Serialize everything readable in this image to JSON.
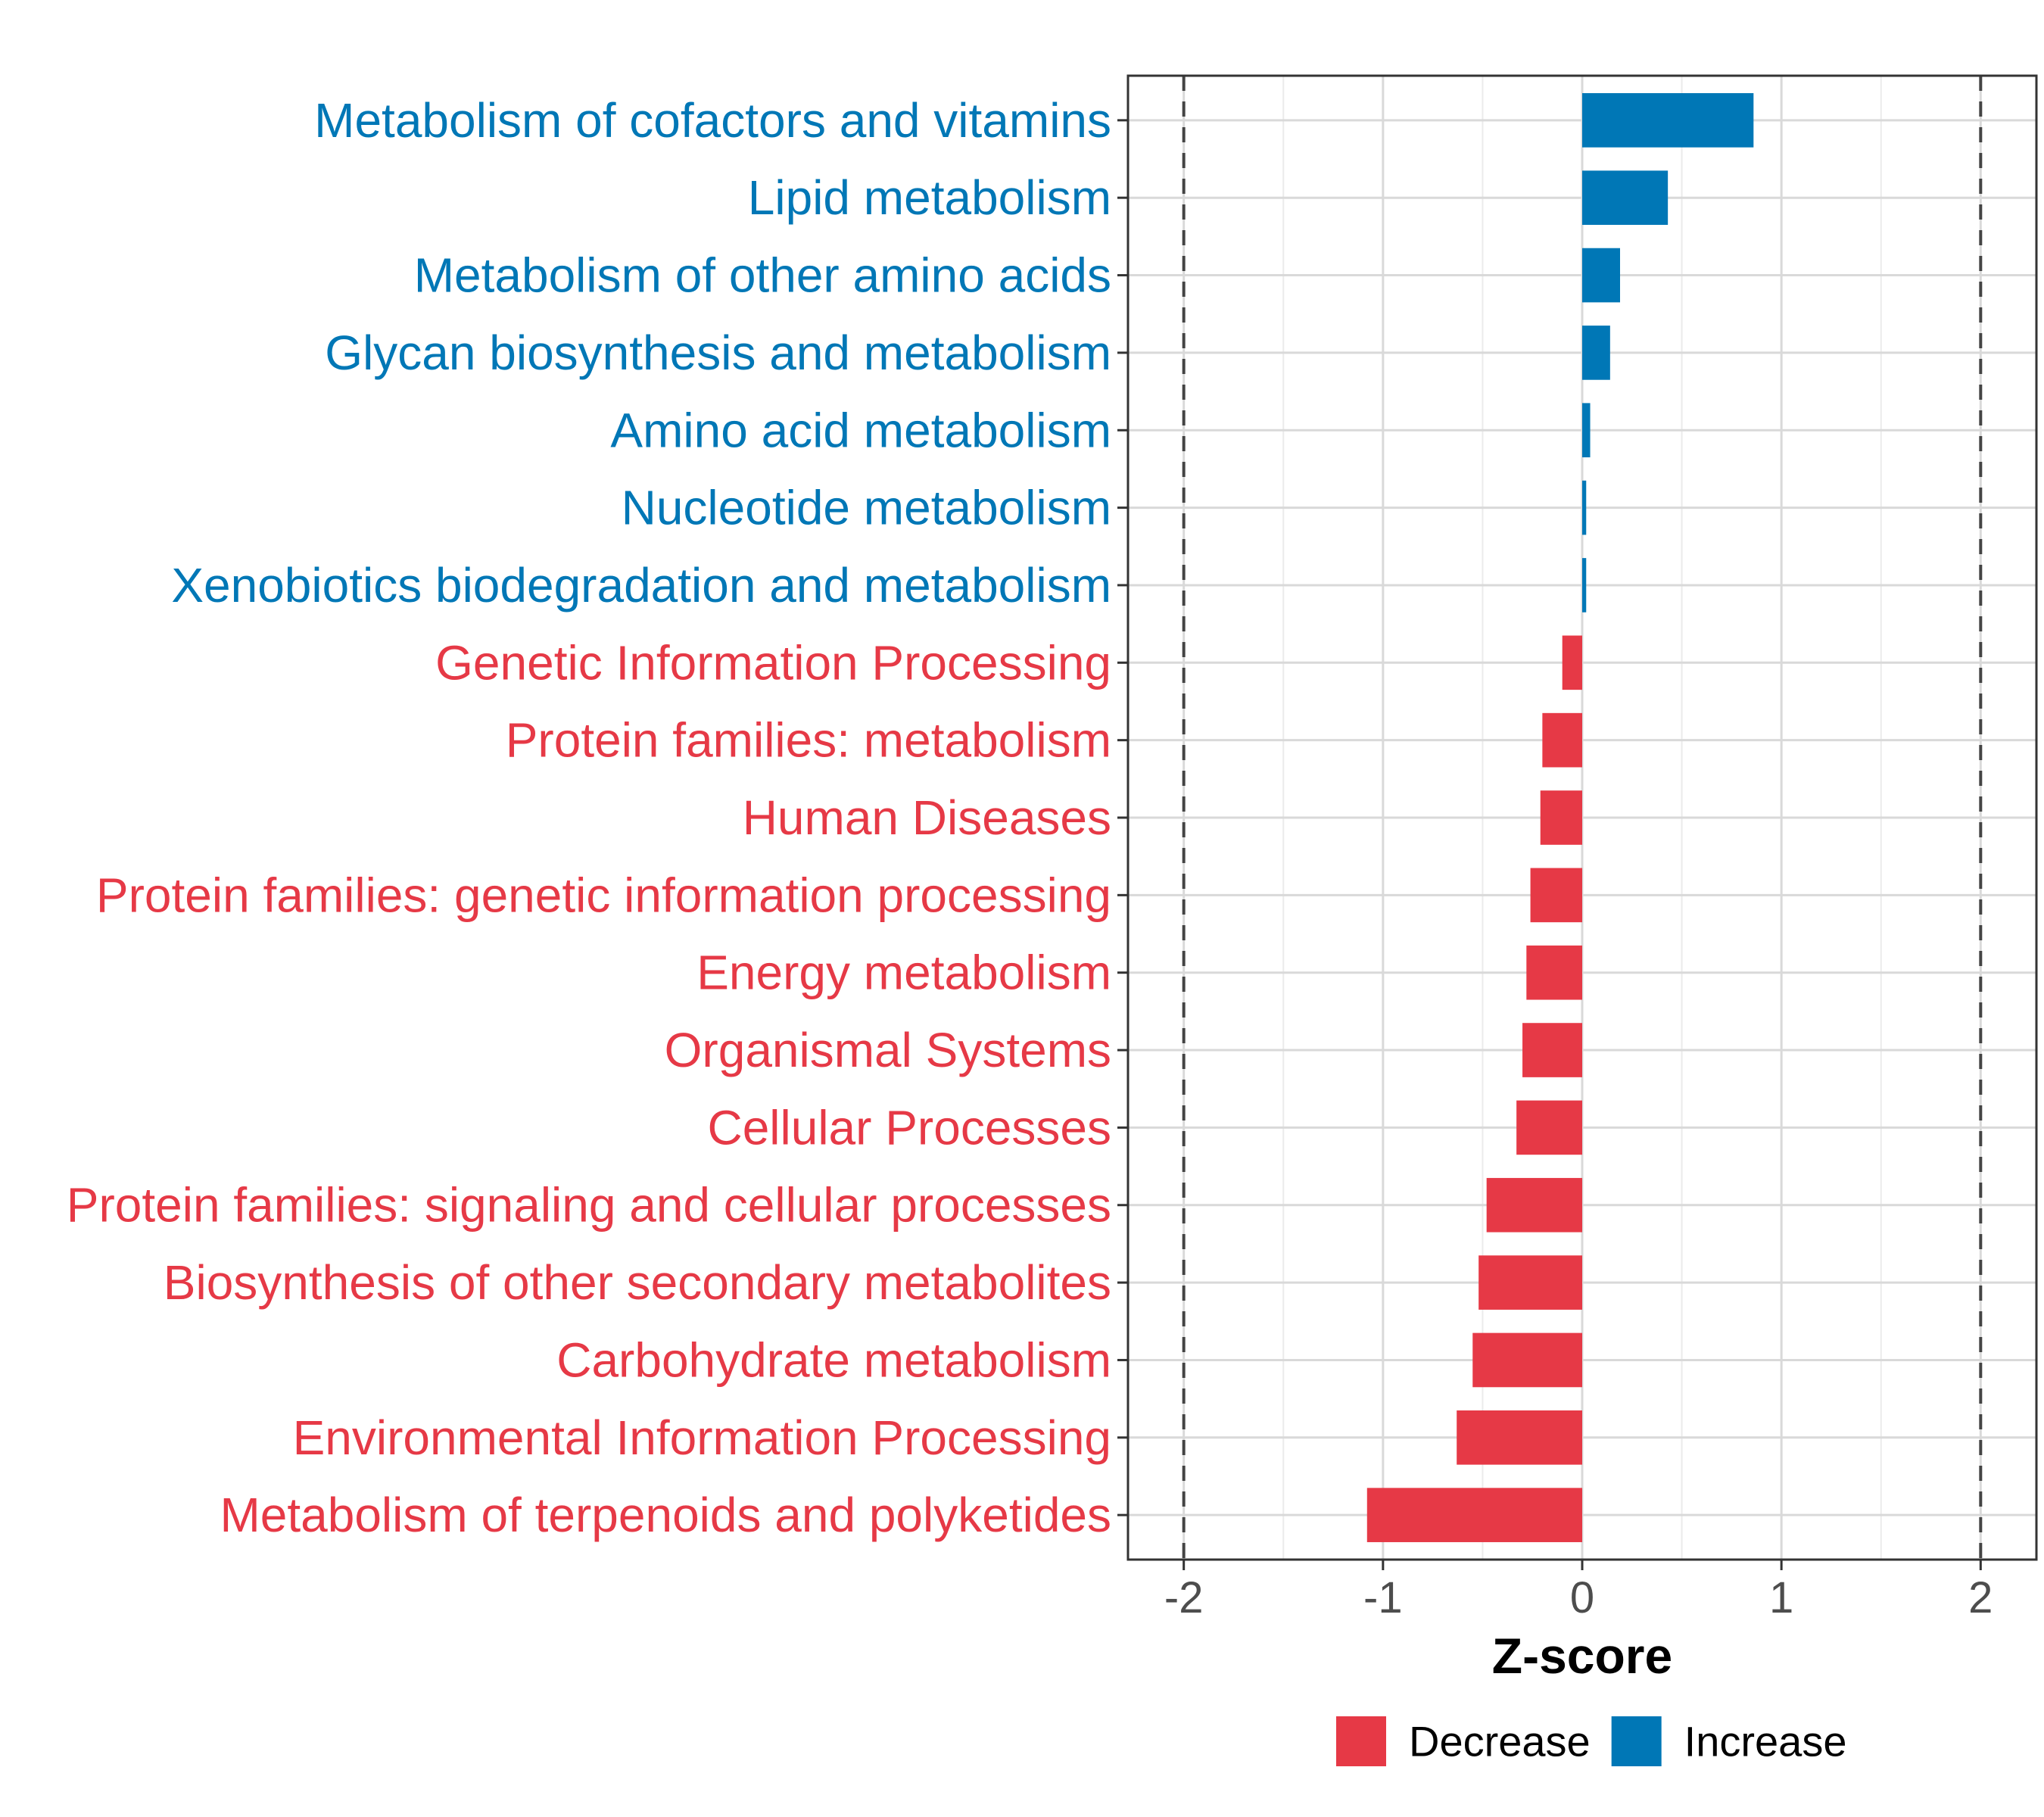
{
  "chart_data": {
    "type": "bar",
    "orientation": "horizontal",
    "xlabel": "Z-score",
    "xlim": [
      -2.28,
      2.28
    ],
    "xticks": [
      -2,
      -1,
      0,
      1,
      2
    ],
    "xtick_labels": [
      "-2",
      "-1",
      "0",
      "1",
      "2"
    ],
    "reference_lines": [
      -2,
      2
    ],
    "grid": true,
    "legend_position": "bottom",
    "categories": [
      "Metabolism of cofactors and vitamins",
      "Lipid metabolism",
      "Metabolism of other amino acids",
      "Glycan biosynthesis and metabolism",
      "Amino acid metabolism",
      "Nucleotide metabolism",
      "Xenobiotics biodegradation and metabolism",
      "Genetic Information Processing",
      "Protein families: metabolism",
      "Human Diseases",
      "Protein families: genetic information processing",
      "Energy metabolism",
      "Organismal Systems",
      "Cellular Processes",
      "Protein families: signaling and cellular processes",
      "Biosynthesis of other secondary metabolites",
      "Carbohydrate metabolism",
      "Environmental Information Processing",
      "Metabolism of terpenoids and polyketides"
    ],
    "values": [
      0.86,
      0.43,
      0.19,
      0.14,
      0.04,
      0.02,
      0.02,
      -0.1,
      -0.2,
      -0.21,
      -0.26,
      -0.28,
      -0.3,
      -0.33,
      -0.48,
      -0.52,
      -0.55,
      -0.63,
      -1.08
    ],
    "legend": [
      {
        "label": "Decrease",
        "color": "#E63946"
      },
      {
        "label": "Increase",
        "color": "#0077B6"
      }
    ]
  }
}
